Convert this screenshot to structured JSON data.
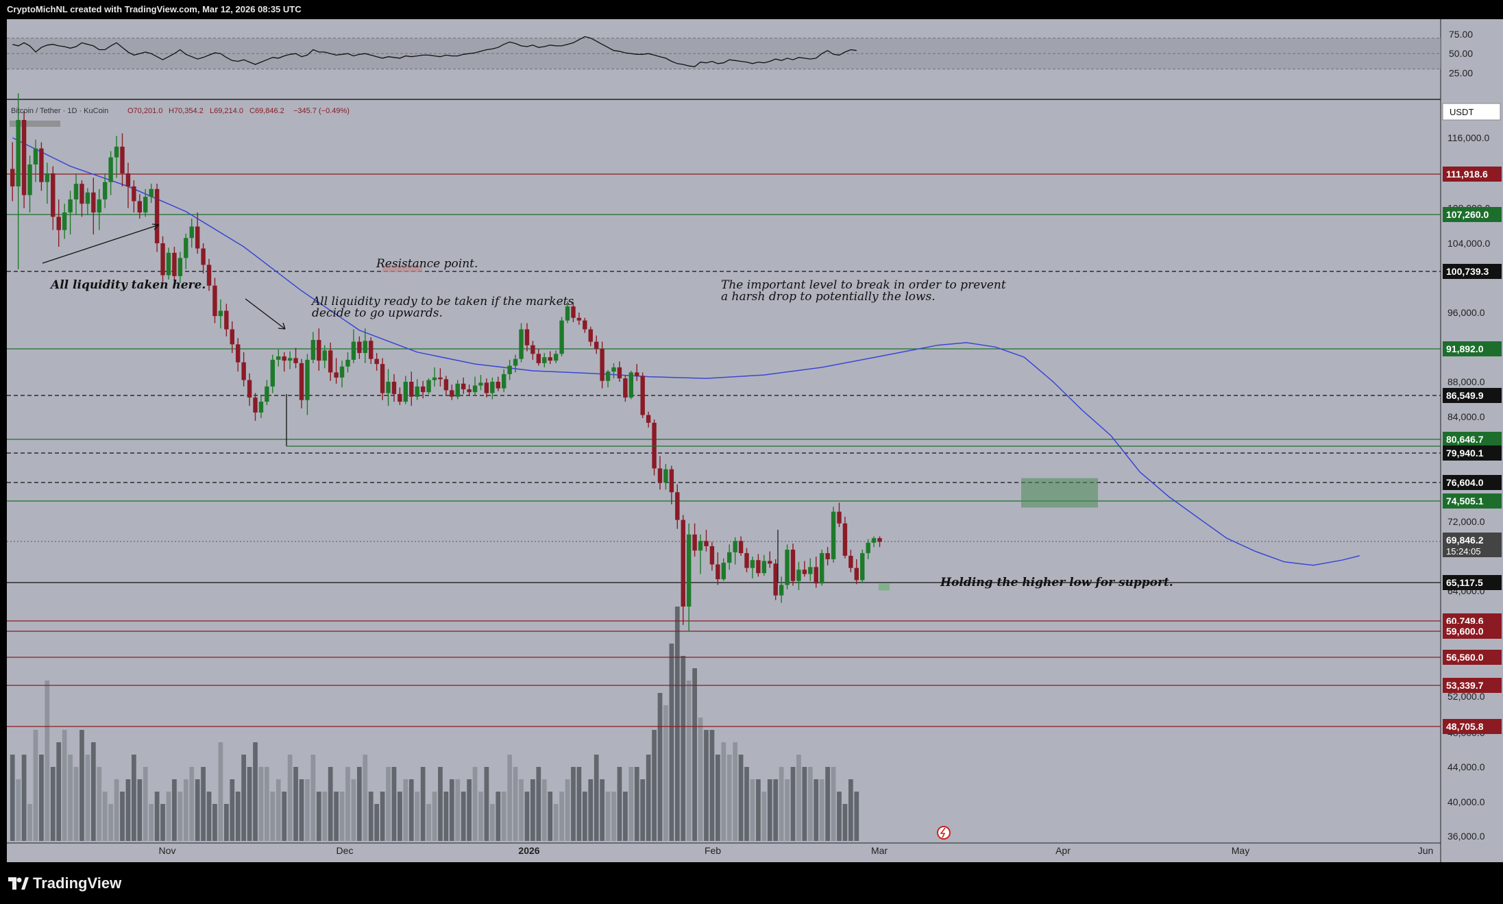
{
  "header": {
    "caption": "CryptoMichNL created with TradingView.com, Mar 12, 2026 08:35 UTC"
  },
  "footer": {
    "brand": "TradingView"
  },
  "colors": {
    "background": "#b0b3bd",
    "bull": "#1e7a2a",
    "bear": "#8a1b27",
    "ma": "#3a45d6",
    "red_level": "#8c1a22",
    "green_level": "#1d6e2c",
    "dark": "#111111"
  },
  "symbol_info": {
    "name": "Bitcoin / Tether · 1D · KuCoin",
    "open": "O70,201.0",
    "high": "H70,354.2",
    "low": "L69,214.0",
    "close": "C69,846.2",
    "change": "−345.7 (−0.49%)"
  },
  "currency_label": "USDT",
  "price_axis_ticks": [
    "116,000.0",
    "108,000.0",
    "104,000.0",
    "96,000.0",
    "88,000.0",
    "84,000.0",
    "72,000.0",
    "64,000.0",
    "52,000.0",
    "48,000.0",
    "44,000.0",
    "40,000.0",
    "36,000.0"
  ],
  "rsi_axis_ticks": [
    "75.00",
    "50.00",
    "25.00"
  ],
  "time_axis_labels": [
    "Nov",
    "Dec",
    "2026",
    "Feb",
    "Mar",
    "Apr",
    "May",
    "Jun"
  ],
  "annotations": {
    "liquidity_taken": "All liquidity taken here.",
    "resistance": "Resistance point.",
    "liquidity_ready_1": "All liquidity ready to be taken if the markets",
    "liquidity_ready_2": "decide to go upwards.",
    "important_level_1": "The important level to break in order to prevent",
    "important_level_2": "a harsh drop to potentially the lows.",
    "higher_low": "Holding the higher low for support."
  },
  "chart_data": {
    "type": "candlestick",
    "symbol": "Bitcoin / Tether",
    "interval": "1D",
    "exchange": "KuCoin",
    "last_price": "69,846.2",
    "countdown": "15:24:05",
    "levels": [
      {
        "label": "111,918.6",
        "value": 111918.6,
        "style": "solid",
        "color": "red"
      },
      {
        "label": "107,260.0",
        "value": 107260.0,
        "style": "solid",
        "color": "green"
      },
      {
        "label": "100,739.3",
        "value": 100739.3,
        "style": "dashed",
        "color": "black"
      },
      {
        "label": "91,892.0",
        "value": 91892.0,
        "style": "solid",
        "color": "green"
      },
      {
        "label": "86,549.9",
        "value": 86549.9,
        "style": "dashed",
        "color": "black"
      },
      {
        "label": "80,646.7",
        "value": 80646.7,
        "style": "solid",
        "color": "green"
      },
      {
        "label": "79,940.1",
        "value": 79940.1,
        "style": "dashed",
        "color": "black"
      },
      {
        "label": "76,604.0",
        "value": 76604.0,
        "style": "dashed",
        "color": "black"
      },
      {
        "label": "74,505.1",
        "value": 74505.1,
        "style": "solid",
        "color": "green"
      },
      {
        "label": "65,117.5",
        "value": 65117.5,
        "style": "solid",
        "color": "black"
      },
      {
        "label": "60,749.6",
        "value": 60749.6,
        "style": "solid",
        "color": "red"
      },
      {
        "label": "59,600.0",
        "value": 59600.0,
        "style": "solid",
        "color": "red"
      },
      {
        "label": "56,560.0",
        "value": 56560.0,
        "style": "solid",
        "color": "red"
      },
      {
        "label": "53,339.7",
        "value": 53339.7,
        "style": "solid",
        "color": "red"
      },
      {
        "label": "48,705.8",
        "value": 48705.8,
        "style": "solid",
        "color": "red"
      }
    ],
    "candles_ohlc": [
      [
        112500,
        115500,
        108800,
        110500
      ],
      [
        110500,
        121000,
        101000,
        118000
      ],
      [
        118000,
        119000,
        108000,
        109500
      ],
      [
        109500,
        114000,
        107500,
        113000
      ],
      [
        113000,
        115800,
        111000,
        114800
      ],
      [
        114800,
        115500,
        110000,
        111000
      ],
      [
        111000,
        113200,
        108500,
        112000
      ],
      [
        112000,
        112800,
        105500,
        107000
      ],
      [
        107000,
        109000,
        103600,
        105500
      ],
      [
        105500,
        108500,
        104500,
        107500
      ],
      [
        107500,
        110000,
        105000,
        109000
      ],
      [
        109000,
        112000,
        107200,
        110800
      ],
      [
        110800,
        111200,
        107000,
        108500
      ],
      [
        108500,
        110300,
        107200,
        109800
      ],
      [
        109800,
        111500,
        105000,
        107500
      ],
      [
        107500,
        110200,
        105500,
        109000
      ],
      [
        109000,
        112000,
        108000,
        111000
      ],
      [
        111000,
        114500,
        109500,
        113800
      ],
      [
        113800,
        116200,
        111500,
        115000
      ],
      [
        115000,
        116500,
        110500,
        112000
      ],
      [
        112000,
        113200,
        108000,
        110500
      ],
      [
        110500,
        111200,
        107500,
        108800
      ],
      [
        108800,
        109600,
        106800,
        107500
      ],
      [
        107500,
        110200,
        107000,
        109300
      ],
      [
        109300,
        110800,
        108600,
        110200
      ],
      [
        110200,
        110800,
        103000,
        104000
      ],
      [
        104000,
        104800,
        99500,
        100300
      ],
      [
        100300,
        103500,
        99800,
        102900
      ],
      [
        102900,
        103600,
        99000,
        100200
      ],
      [
        100200,
        103000,
        99400,
        102300
      ],
      [
        102300,
        105100,
        101000,
        104600
      ],
      [
        104600,
        106800,
        103500,
        105900
      ],
      [
        105900,
        107500,
        102800,
        103400
      ],
      [
        103400,
        104000,
        100500,
        101500
      ],
      [
        101500,
        102200,
        98500,
        99100
      ],
      [
        99100,
        100000,
        94800,
        95600
      ],
      [
        95600,
        97500,
        94200,
        96200
      ],
      [
        96200,
        97000,
        93300,
        94100
      ],
      [
        94100,
        95000,
        91400,
        92400
      ],
      [
        92400,
        93100,
        89200,
        90300
      ],
      [
        90300,
        91500,
        87500,
        88200
      ],
      [
        88200,
        89000,
        85300,
        86300
      ],
      [
        86300,
        86800,
        83400,
        84500
      ],
      [
        84500,
        86500,
        83800,
        85800
      ],
      [
        85800,
        88200,
        85400,
        87500
      ],
      [
        87500,
        91200,
        86800,
        90600
      ],
      [
        90600,
        91800,
        89800,
        91000
      ],
      [
        91000,
        91500,
        89200,
        90500
      ],
      [
        90500,
        91600,
        89500,
        90800
      ],
      [
        90800,
        92000,
        89600,
        90200
      ],
      [
        90200,
        90700,
        85000,
        86000
      ],
      [
        86000,
        91300,
        84200,
        90600
      ],
      [
        90600,
        93800,
        90200,
        92900
      ],
      [
        92900,
        94200,
        89300,
        90500
      ],
      [
        90500,
        92300,
        89600,
        91700
      ],
      [
        91700,
        92600,
        88100,
        89100
      ],
      [
        89100,
        90800,
        87800,
        88500
      ],
      [
        88500,
        90500,
        87400,
        89800
      ],
      [
        89800,
        91500,
        89100,
        90600
      ],
      [
        90600,
        94100,
        90200,
        92700
      ],
      [
        92700,
        93300,
        90700,
        91400
      ],
      [
        91400,
        94200,
        90200,
        92800
      ],
      [
        92800,
        93200,
        90100,
        90700
      ],
      [
        90700,
        91400,
        89300,
        90100
      ],
      [
        90100,
        90800,
        86000,
        86800
      ],
      [
        86800,
        89500,
        85300,
        88000
      ],
      [
        88000,
        88900,
        85800,
        86700
      ],
      [
        86700,
        87400,
        85400,
        85800
      ],
      [
        85800,
        88700,
        85500,
        88000
      ],
      [
        88000,
        89200,
        85300,
        86400
      ],
      [
        86400,
        88300,
        86000,
        87500
      ],
      [
        87500,
        88100,
        86200,
        86900
      ],
      [
        86900,
        88400,
        86700,
        88200
      ],
      [
        88200,
        89700,
        87500,
        88500
      ],
      [
        88500,
        89600,
        87500,
        88300
      ],
      [
        88300,
        88700,
        86600,
        87100
      ],
      [
        87100,
        87700,
        86000,
        86400
      ],
      [
        86400,
        88200,
        86100,
        87800
      ],
      [
        87800,
        88500,
        86700,
        87200
      ],
      [
        87200,
        87700,
        86600,
        86900
      ],
      [
        86900,
        88600,
        86500,
        87600
      ],
      [
        87600,
        88800,
        87100,
        87900
      ],
      [
        87900,
        88400,
        86300,
        86800
      ],
      [
        86800,
        88500,
        86100,
        88000
      ],
      [
        88000,
        88600,
        87000,
        87300
      ],
      [
        87300,
        89500,
        86900,
        88900
      ],
      [
        88900,
        90600,
        88200,
        89900
      ],
      [
        89900,
        91200,
        89100,
        90700
      ],
      [
        90700,
        94800,
        90300,
        94100
      ],
      [
        94100,
        94800,
        91600,
        92300
      ],
      [
        92300,
        92800,
        90600,
        91300
      ],
      [
        91300,
        91900,
        89900,
        90200
      ],
      [
        90200,
        91400,
        89700,
        90900
      ],
      [
        90900,
        91600,
        90100,
        90500
      ],
      [
        90500,
        91700,
        90200,
        91300
      ],
      [
        91300,
        95500,
        91000,
        95100
      ],
      [
        95100,
        97300,
        94800,
        96700
      ],
      [
        96700,
        97200,
        94900,
        95400
      ],
      [
        95400,
        96000,
        94600,
        95100
      ],
      [
        95100,
        95400,
        93700,
        94100
      ],
      [
        94100,
        94400,
        92200,
        92700
      ],
      [
        92700,
        93400,
        91300,
        91900
      ],
      [
        91900,
        92700,
        87300,
        88100
      ],
      [
        88100,
        89400,
        87400,
        89200
      ],
      [
        89200,
        90200,
        88400,
        89700
      ],
      [
        89700,
        90400,
        88000,
        88400
      ],
      [
        88400,
        88800,
        85800,
        86300
      ],
      [
        86300,
        89300,
        86100,
        89100
      ],
      [
        89100,
        90100,
        88100,
        88700
      ],
      [
        88700,
        89100,
        83800,
        84200
      ],
      [
        84200,
        84600,
        82400,
        83100
      ],
      [
        83100,
        83600,
        77400,
        78200
      ],
      [
        78200,
        79600,
        75800,
        76600
      ],
      [
        76600,
        78700,
        75800,
        78100
      ],
      [
        78100,
        78500,
        74100,
        75500
      ],
      [
        75500,
        76400,
        71200,
        72200
      ],
      [
        72200,
        72800,
        60300,
        62300
      ],
      [
        62300,
        71800,
        59600,
        70600
      ],
      [
        70600,
        71800,
        68100,
        68800
      ],
      [
        68800,
        70600,
        66100,
        69900
      ],
      [
        69900,
        71100,
        68700,
        69300
      ],
      [
        69300,
        69800,
        66500,
        67200
      ],
      [
        67200,
        68600,
        64800,
        65500
      ],
      [
        65500,
        67900,
        65300,
        67400
      ],
      [
        67400,
        69500,
        66600,
        68600
      ],
      [
        68600,
        70300,
        67200,
        69900
      ],
      [
        69900,
        70400,
        68200,
        68500
      ],
      [
        68500,
        69100,
        66300,
        66800
      ],
      [
        66800,
        68100,
        65600,
        67700
      ],
      [
        67700,
        68400,
        65800,
        66200
      ],
      [
        66200,
        68300,
        65900,
        67600
      ],
      [
        67600,
        68700,
        66800,
        67300
      ],
      [
        67300,
        67800,
        63000,
        63500
      ],
      [
        63500,
        65800,
        62700,
        64800
      ],
      [
        64800,
        69500,
        64200,
        68900
      ],
      [
        68900,
        69600,
        64700,
        65300
      ],
      [
        65300,
        67500,
        64100,
        66600
      ],
      [
        66600,
        67600,
        65800,
        66100
      ],
      [
        66100,
        67900,
        65300,
        66900
      ],
      [
        66900,
        68100,
        64400,
        65000
      ],
      [
        65000,
        68900,
        64700,
        68500
      ],
      [
        68500,
        69200,
        67100,
        67800
      ],
      [
        67800,
        73800,
        67400,
        73200
      ],
      [
        73200,
        74300,
        71400,
        71800
      ],
      [
        71800,
        72600,
        67900,
        68200
      ],
      [
        68200,
        68900,
        66300,
        66800
      ],
      [
        66800,
        67800,
        64900,
        65400
      ],
      [
        65400,
        68900,
        65100,
        68500
      ],
      [
        68500,
        70100,
        67800,
        69700
      ],
      [
        69700,
        70400,
        69200,
        70200
      ],
      [
        70200,
        70400,
        69200,
        69800
      ]
    ],
    "moving_average": [
      [
        0,
        116000
      ],
      [
        10,
        112800
      ],
      [
        20,
        110500
      ],
      [
        30,
        107600
      ],
      [
        40,
        103600
      ],
      [
        50,
        98500
      ],
      [
        60,
        94000
      ],
      [
        70,
        91500
      ],
      [
        80,
        90100
      ],
      [
        90,
        89300
      ],
      [
        100,
        89000
      ],
      [
        110,
        88600
      ],
      [
        120,
        88400
      ],
      [
        130,
        88800
      ],
      [
        140,
        89700
      ],
      [
        150,
        91000
      ],
      [
        160,
        92300
      ],
      [
        165,
        92600
      ],
      [
        170,
        92100
      ],
      [
        175,
        90900
      ],
      [
        180,
        88000
      ],
      [
        185,
        84800
      ],
      [
        190,
        81200
      ],
      [
        195,
        77800
      ],
      [
        200,
        75000
      ],
      [
        205,
        72500
      ],
      [
        210,
        70200
      ],
      [
        215,
        68700
      ],
      [
        220,
        67500
      ],
      [
        225,
        67100
      ],
      [
        230,
        67700
      ],
      [
        233,
        68200
      ]
    ],
    "volume": [
      41,
      39,
      41,
      37,
      43,
      41,
      47,
      40,
      42,
      43,
      41,
      40,
      43,
      41,
      42,
      40,
      38,
      37,
      39,
      38,
      39,
      41,
      39,
      40,
      37,
      38,
      37,
      38,
      39,
      38,
      39,
      40,
      39,
      40,
      38,
      37,
      42,
      37,
      39,
      38,
      41,
      40,
      42,
      40,
      40,
      38,
      39,
      38,
      41,
      40,
      39,
      39,
      41,
      38,
      38,
      40,
      38,
      38,
      40,
      39,
      40,
      41,
      38,
      37,
      38,
      40,
      40,
      38,
      39,
      39,
      38,
      40,
      37,
      38,
      40,
      38,
      39,
      39,
      38,
      39,
      40,
      38,
      40,
      37,
      38,
      38,
      41,
      40,
      39,
      38,
      39,
      40,
      39,
      38,
      37,
      38,
      39,
      40,
      40,
      38,
      39,
      41,
      39,
      38,
      38,
      40,
      38,
      40,
      40,
      39,
      41,
      43,
      46,
      45,
      50,
      53,
      49,
      47,
      48,
      44,
      43,
      43,
      41,
      42,
      41,
      42,
      41,
      40,
      39,
      39,
      38,
      39,
      39,
      40,
      39,
      40,
      41,
      40,
      40,
      39,
      39,
      40,
      40,
      38,
      37,
      39,
      38
    ],
    "rsi": [
      62,
      60,
      64,
      60,
      52,
      58,
      61,
      62,
      60,
      59,
      57,
      59,
      64,
      62,
      60,
      55,
      55,
      60,
      64,
      58,
      52,
      48,
      50,
      52,
      50,
      46,
      42,
      46,
      50,
      55,
      49,
      46,
      43,
      45,
      48,
      51,
      50,
      45,
      41,
      40,
      42,
      39,
      36,
      39,
      42,
      45,
      44,
      47,
      49,
      50,
      46,
      48,
      55,
      52,
      52,
      50,
      48,
      49,
      50,
      47,
      49,
      50,
      48,
      46,
      44,
      46,
      45,
      44,
      47,
      46,
      47,
      48,
      48,
      47,
      46,
      48,
      47,
      47,
      49,
      50,
      51,
      53,
      55,
      56,
      58,
      62,
      65,
      63,
      60,
      59,
      61,
      58,
      59,
      61,
      60,
      60,
      62,
      64,
      68,
      72,
      70,
      66,
      62,
      58,
      54,
      53,
      51,
      50,
      49,
      49,
      50,
      48,
      46,
      44,
      40,
      37,
      36,
      34,
      33,
      39,
      38,
      40,
      37,
      38,
      42,
      41,
      40,
      39,
      37,
      39,
      38,
      40,
      43,
      41,
      44,
      42,
      45,
      44,
      43,
      44,
      50,
      54,
      49,
      48,
      52,
      55,
      54
    ],
    "x_range": {
      "start": "2025-10-04",
      "end": "2026-06-03"
    }
  }
}
